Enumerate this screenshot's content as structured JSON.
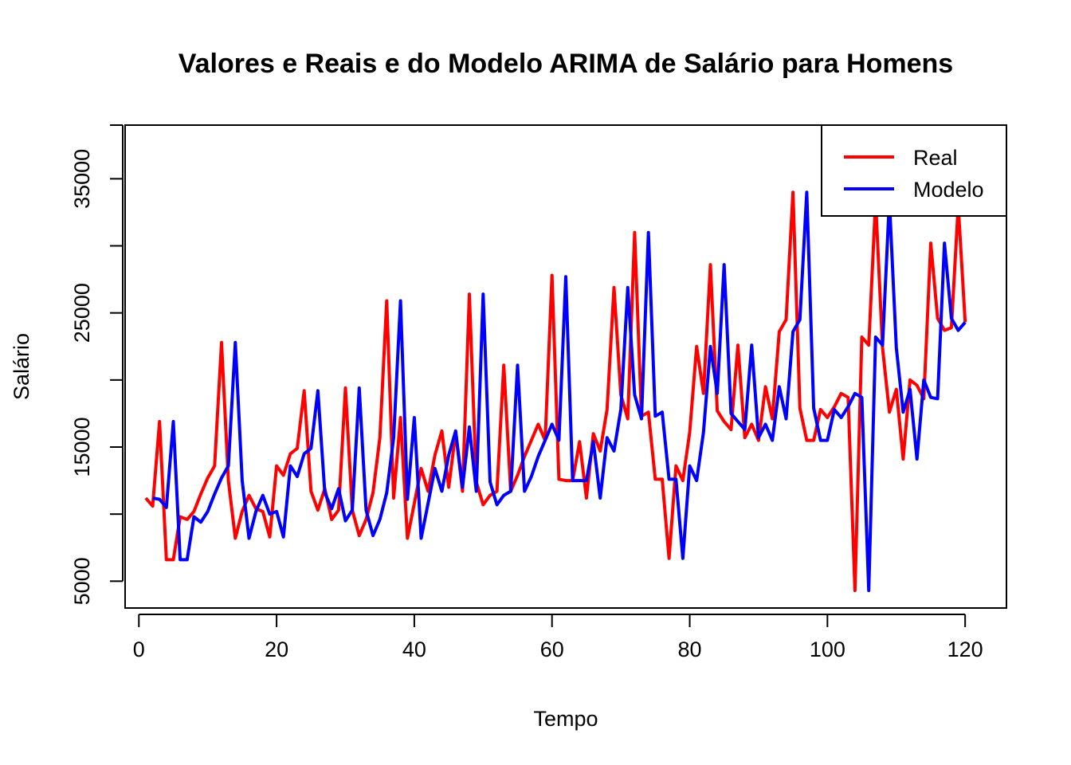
{
  "chart_data": {
    "type": "line",
    "title": "Valores e Reais e do Modelo ARIMA de Salário para Homens",
    "xlabel": "Tempo",
    "ylabel": "Salário",
    "xlim": [
      -2,
      126
    ],
    "ylim": [
      3000,
      39000
    ],
    "x_ticks": [
      0,
      20,
      40,
      60,
      80,
      100,
      120
    ],
    "y_ticks": [
      5000,
      15000,
      25000,
      35000
    ],
    "x_tick_labels": [
      "0",
      "20",
      "40",
      "60",
      "80",
      "100",
      "120"
    ],
    "y_tick_labels": [
      "5000",
      "15000",
      "25000",
      "35000"
    ],
    "legend": {
      "position": "top-right"
    },
    "series": [
      {
        "name": "Real",
        "color": "#ff0000",
        "values": [
          11200,
          10600,
          16900,
          6600,
          6600,
          9800,
          9600,
          10200,
          11500,
          12700,
          13600,
          22800,
          12500,
          8200,
          10200,
          11400,
          10400,
          10200,
          8300,
          13600,
          12900,
          14500,
          14900,
          19200,
          11700,
          10300,
          11900,
          9600,
          10300,
          19400,
          10300,
          8400,
          9600,
          11600,
          15700,
          25900,
          11200,
          17200,
          8200,
          10800,
          13400,
          11700,
          14400,
          16200,
          12000,
          16100,
          11700,
          26400,
          12400,
          10700,
          11400,
          11700,
          21100,
          11700,
          12900,
          14300,
          15500,
          16700,
          15500,
          27800,
          12600,
          12500,
          12500,
          15400,
          11200,
          16000,
          14700,
          17800,
          26900,
          18900,
          17100,
          31000,
          17300,
          17600,
          12600,
          12600,
          6700,
          13600,
          12500,
          16100,
          22500,
          19000,
          28600,
          17700,
          16900,
          16300,
          22600,
          15700,
          16700,
          15500,
          19500,
          17100,
          23600,
          24500,
          34000,
          17900,
          15500,
          15500,
          17800,
          17200,
          18000,
          19000,
          18700,
          4300,
          23200,
          22600,
          33400,
          22400,
          17600,
          19300,
          14100,
          20000,
          19600,
          18600,
          30200,
          24600,
          23700,
          23900,
          33000,
          24300
        ],
        "values_note": ""
      },
      {
        "name": "Modelo",
        "color": "#0000ff",
        "values": [
          null,
          11200,
          11100,
          10500,
          16900,
          6600,
          6600,
          9800,
          9400,
          10200,
          11500,
          12700,
          13600,
          22800,
          12500,
          8200,
          10200,
          11400,
          10000,
          10200,
          8300,
          13600,
          12800,
          14500,
          14900,
          19200,
          11600,
          10400,
          11900,
          9500,
          10300,
          19400,
          10300,
          8400,
          9600,
          11600,
          15700,
          25900,
          11100,
          17200,
          8200,
          10800,
          13400,
          11700,
          14400,
          16200,
          12000,
          16500,
          11700,
          26400,
          12400,
          10700,
          11400,
          11700,
          21100,
          11700,
          12800,
          14300,
          15500,
          16700,
          15500,
          27700,
          12500,
          12500,
          12500,
          15400,
          11200,
          15700,
          14700,
          17800,
          26900,
          18900,
          17100,
          31000,
          17300,
          17600,
          12600,
          12600,
          6700,
          13600,
          12500,
          16100,
          22500,
          19000,
          28600,
          17500,
          16900,
          16300,
          22600,
          15700,
          16700,
          15500,
          19500,
          17100,
          23600,
          24500,
          34000,
          17900,
          15500,
          15500,
          17800,
          17200,
          18000,
          19000,
          18700,
          4300,
          23200,
          22600,
          33400,
          22400,
          17600,
          19300,
          14100,
          20000,
          18700,
          18600,
          30200,
          24600,
          23700,
          24300
        ]
      }
    ]
  }
}
